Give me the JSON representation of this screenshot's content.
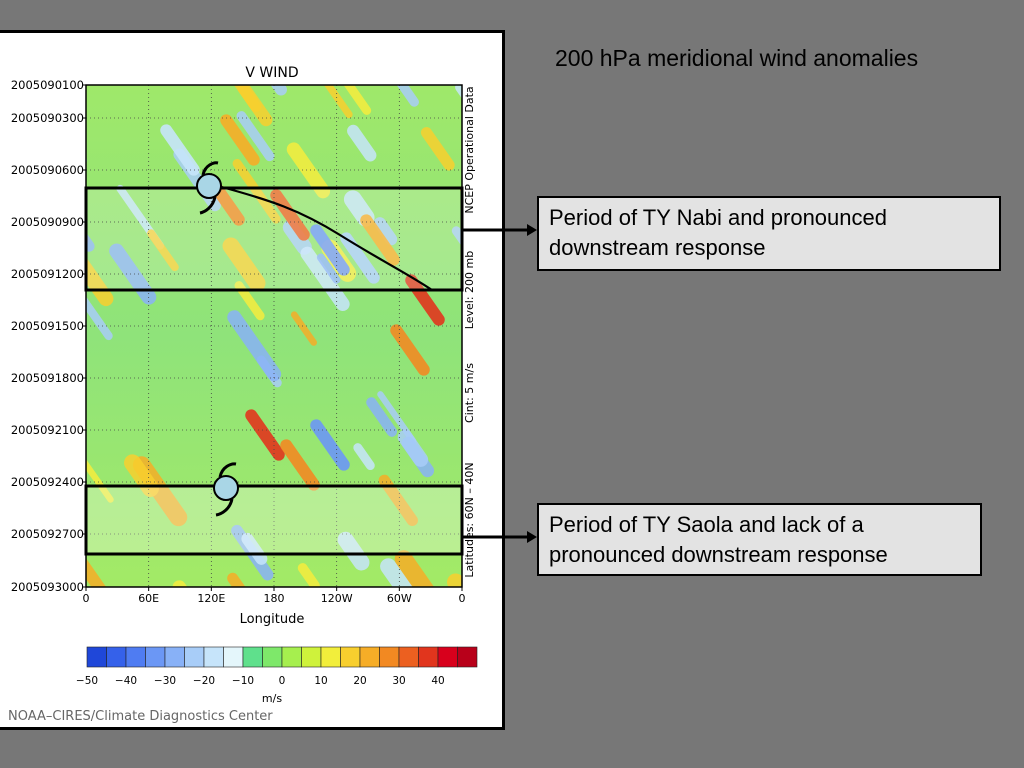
{
  "slide": {
    "title": "200 hPa meridional wind anomalies",
    "callout_nabi": "Period of TY Nabi and pronounced downstream response",
    "callout_saola": "Period of TY Saola and lack of a pronounced downstream response"
  },
  "chart_data": {
    "type": "heatmap",
    "title": "V WIND",
    "xlabel": "Longitude",
    "ylabel": "",
    "x_ticks": [
      "0",
      "60E",
      "120E",
      "180",
      "120W",
      "60W",
      "0"
    ],
    "y_ticks": [
      "2005090100",
      "2005090300",
      "2005090600",
      "2005090900",
      "2005091200",
      "2005091500",
      "2005091800",
      "2005092100",
      "2005092400",
      "2005092700",
      "2005093000"
    ],
    "right_annotations": [
      "NCEP Operational Data",
      "Level: 200 mb",
      "Cint: 5 m/s",
      "Latitudes: 60N – 40N"
    ],
    "colorbar": {
      "unit": "m/s",
      "tick_labels": [
        "−50",
        "−40",
        "−30",
        "−20",
        "−10",
        "0",
        "10",
        "20",
        "30",
        "40"
      ],
      "colors": [
        "#1f47d9",
        "#3561ea",
        "#4f7cf2",
        "#6b97f5",
        "#88b1f7",
        "#a8cdf8",
        "#c6e4fa",
        "#e4f6fb",
        "#5fe08c",
        "#7ee86a",
        "#a6ef4e",
        "#cff23b",
        "#f2ee3b",
        "#f8cf2e",
        "#f6ad27",
        "#f28922",
        "#ec6020",
        "#e1351d",
        "#d8001c",
        "#b8001a"
      ]
    },
    "credit": "NOAA–CIRES/Climate Diagnostics Center",
    "highlight_periods": [
      {
        "label": "TY Nabi",
        "start": "2005090700",
        "end": "2005091200"
      },
      {
        "label": "TY Saola",
        "start": "2005092400",
        "end": "2005092800"
      }
    ]
  }
}
